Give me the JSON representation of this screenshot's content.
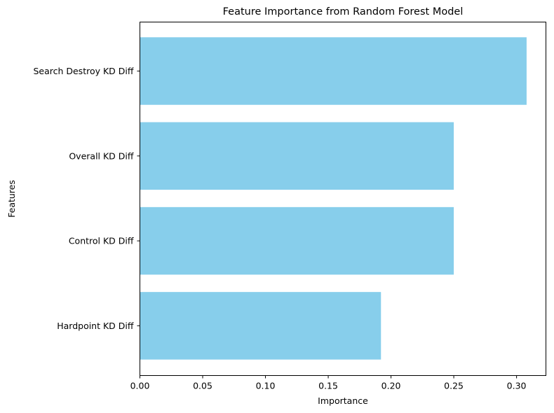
{
  "chart_data": {
    "type": "bar",
    "orientation": "horizontal",
    "title": "Feature Importance from Random Forest Model",
    "xlabel": "Importance",
    "ylabel": "Features",
    "categories": [
      "Search Destroy KD Diff",
      "Overall KD Diff",
      "Control KD Diff",
      "Hardpoint KD Diff"
    ],
    "values": [
      0.308,
      0.25,
      0.25,
      0.192
    ],
    "xlim": [
      0,
      0.3234
    ],
    "xticks": [
      0.0,
      0.05,
      0.1,
      0.15,
      0.2,
      0.25,
      0.3
    ],
    "xtick_labels": [
      "0.00",
      "0.05",
      "0.10",
      "0.15",
      "0.20",
      "0.25",
      "0.30"
    ],
    "bar_color": "#87ceeb",
    "grid": false,
    "legend": "none"
  }
}
